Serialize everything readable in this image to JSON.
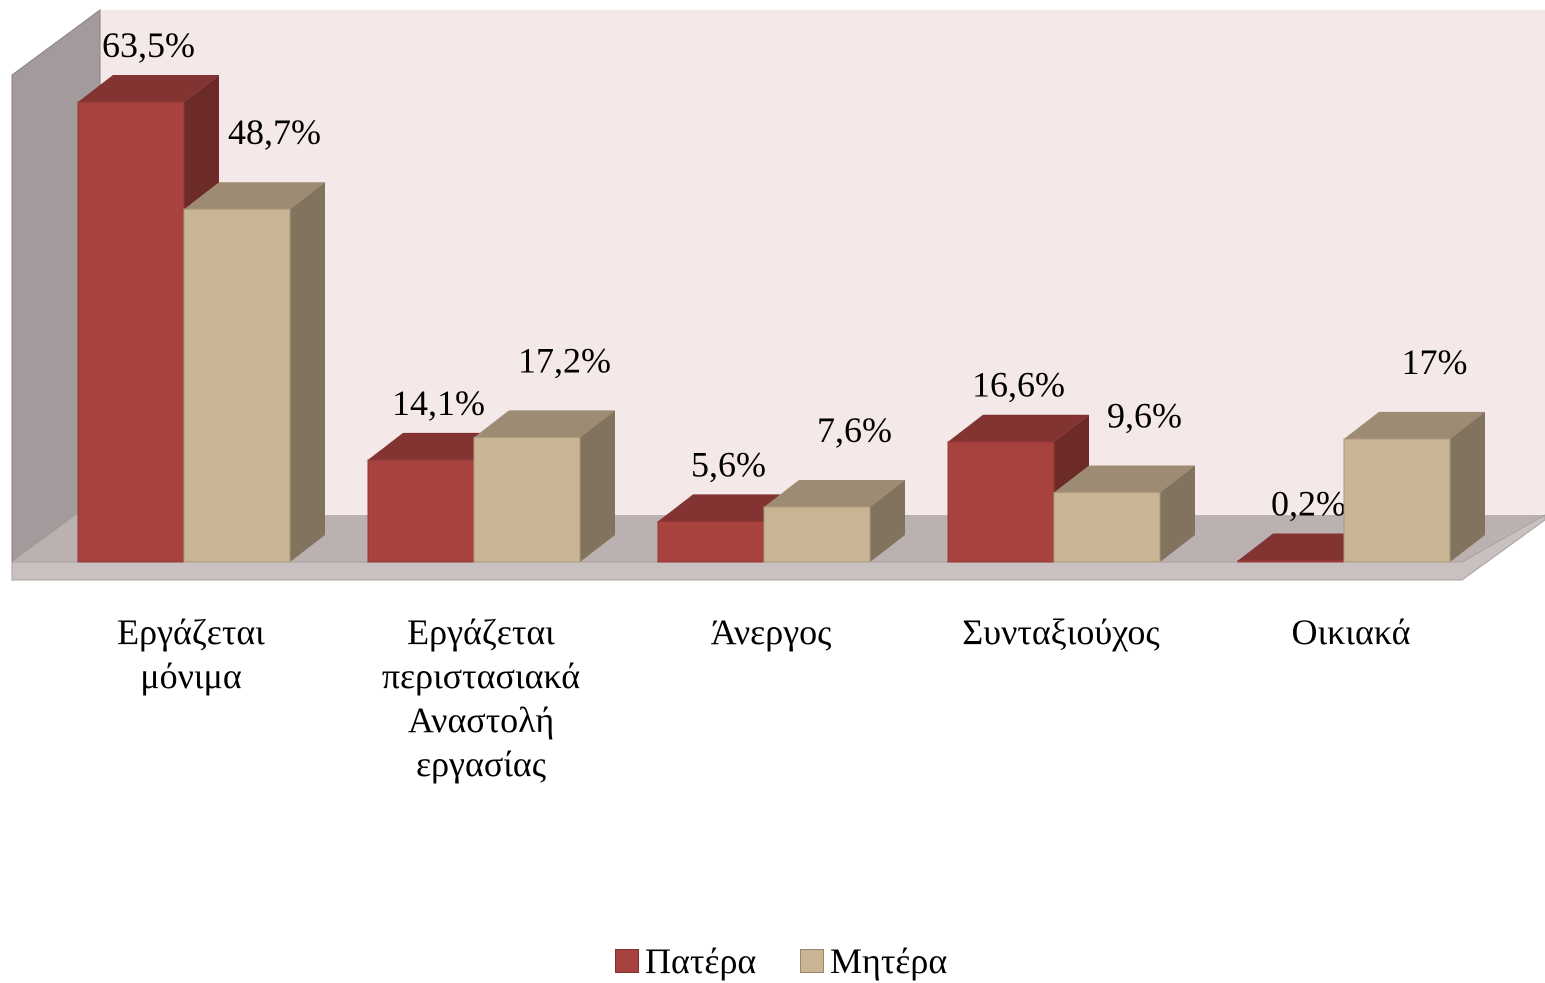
{
  "chart_data": {
    "type": "bar3d",
    "categories": [
      "Εργάζεται μόνιμα",
      "Εργάζεται περιστασιακά Αναστολή εργασίας",
      "Άνεργος",
      "Συνταξιούχος",
      "Οικιακά"
    ],
    "series": [
      {
        "name": "Πατέρα",
        "color": "#a8423f",
        "values": [
          63.5,
          14.1,
          5.6,
          16.6,
          0.2
        ],
        "value_labels": [
          "63,5%",
          "14,1%",
          "5,6%",
          "16,6%",
          "0,2%"
        ]
      },
      {
        "name": "Μητέρα",
        "color": "#c9b493",
        "values": [
          48.7,
          17.2,
          7.6,
          9.6,
          17
        ],
        "value_labels": [
          "48,7%",
          "17,2%",
          "7,6%",
          "9,6%",
          "17%"
        ]
      }
    ],
    "legend": "bottom"
  }
}
